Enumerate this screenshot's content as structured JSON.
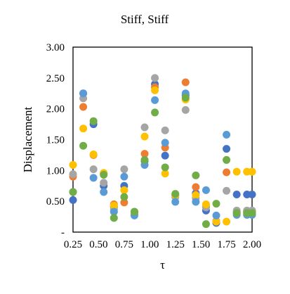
{
  "chart_data": {
    "type": "scatter",
    "title": "Stiff, Stiff",
    "xlabel": "τ",
    "ylabel": "Displacement",
    "xlim": [
      0.25,
      2.0
    ],
    "ylim": [
      0,
      3.0
    ],
    "x_ticks": [
      "0.25",
      "0.50",
      "0.75",
      "1.00",
      "1.25",
      "1.50",
      "1.75",
      "2.00"
    ],
    "y_ticks": [
      "-",
      "0.50",
      "1.00",
      "1.50",
      "2.00",
      "2.50",
      "3.00"
    ],
    "grid": false,
    "legend": "none",
    "series": [
      {
        "color": "#4472C4",
        "points": [
          [
            0.25,
            0.52
          ],
          [
            0.35,
            2.25
          ],
          [
            0.45,
            1.75
          ],
          [
            0.55,
            0.75
          ],
          [
            0.65,
            0.41
          ],
          [
            0.75,
            0.75
          ],
          [
            0.85,
            0.3
          ],
          [
            0.95,
            1.15
          ],
          [
            1.05,
            2.4
          ],
          [
            1.15,
            1.24
          ],
          [
            1.25,
            0.6
          ],
          [
            1.35,
            2.22
          ],
          [
            1.45,
            0.63
          ],
          [
            1.55,
            0.35
          ],
          [
            1.65,
            0.15
          ],
          [
            1.75,
            1.35
          ],
          [
            1.85,
            0.61
          ],
          [
            1.95,
            0.61
          ],
          [
            2.0,
            0.61
          ]
        ]
      },
      {
        "color": "#ED7D31",
        "points": [
          [
            0.25,
            0.9
          ],
          [
            0.35,
            2.03
          ],
          [
            0.45,
            1.25
          ],
          [
            0.55,
            0.95
          ],
          [
            0.65,
            0.45
          ],
          [
            0.75,
            0.48
          ],
          [
            0.85,
            0.33
          ],
          [
            0.95,
            1.27
          ],
          [
            1.05,
            2.35
          ],
          [
            1.15,
            1.37
          ],
          [
            1.25,
            0.6
          ],
          [
            1.35,
            2.43
          ],
          [
            1.45,
            0.73
          ],
          [
            1.55,
            0.41
          ],
          [
            1.65,
            0.18
          ],
          [
            1.75,
            0.97
          ],
          [
            1.85,
            0.32
          ],
          [
            1.95,
            0.33
          ],
          [
            2.0,
            0.33
          ]
        ]
      },
      {
        "color": "#A5A5A5",
        "points": [
          [
            0.25,
            0.94
          ],
          [
            0.35,
            2.17
          ],
          [
            0.45,
            1.02
          ],
          [
            0.55,
            0.8
          ],
          [
            0.65,
            0.37
          ],
          [
            0.75,
            1.02
          ],
          [
            0.85,
            0.33
          ],
          [
            0.95,
            1.7
          ],
          [
            1.05,
            2.5
          ],
          [
            1.15,
            1.65
          ],
          [
            1.25,
            0.57
          ],
          [
            1.35,
            1.98
          ],
          [
            1.45,
            0.55
          ],
          [
            1.55,
            0.4
          ],
          [
            1.65,
            0.17
          ],
          [
            1.75,
            0.67
          ],
          [
            1.85,
            0.35
          ],
          [
            1.95,
            0.35
          ],
          [
            2.0,
            0.35
          ]
        ]
      },
      {
        "color": "#FFC000",
        "points": [
          [
            0.25,
            1.09
          ],
          [
            0.35,
            1.68
          ],
          [
            0.45,
            1.26
          ],
          [
            0.55,
            0.96
          ],
          [
            0.65,
            0.43
          ],
          [
            0.75,
            0.68
          ],
          [
            0.85,
            0.31
          ],
          [
            0.95,
            1.55
          ],
          [
            1.05,
            2.3
          ],
          [
            1.15,
            0.95
          ],
          [
            1.25,
            0.6
          ],
          [
            1.35,
            2.15
          ],
          [
            1.45,
            0.6
          ],
          [
            1.55,
            0.45
          ],
          [
            1.65,
            0.17
          ],
          [
            1.75,
            0.17
          ],
          [
            1.85,
            0.98
          ],
          [
            1.95,
            0.98
          ],
          [
            2.0,
            0.98
          ]
        ]
      },
      {
        "color": "#5B9BD5",
        "points": [
          [
            0.25,
            0.65
          ],
          [
            0.35,
            2.25
          ],
          [
            0.45,
            0.88
          ],
          [
            0.55,
            0.65
          ],
          [
            0.65,
            0.33
          ],
          [
            0.75,
            0.9
          ],
          [
            0.85,
            0.27
          ],
          [
            0.95,
            1.09
          ],
          [
            1.05,
            2.14
          ],
          [
            1.15,
            1.45
          ],
          [
            1.25,
            0.49
          ],
          [
            1.35,
            2.25
          ],
          [
            1.45,
            0.49
          ],
          [
            1.55,
            0.68
          ],
          [
            1.65,
            0.27
          ],
          [
            1.75,
            1.58
          ],
          [
            1.85,
            0.28
          ],
          [
            1.95,
            0.28
          ],
          [
            2.0,
            0.28
          ]
        ]
      },
      {
        "color": "#70AD47",
        "points": [
          [
            0.25,
            0.65
          ],
          [
            0.35,
            1.4
          ],
          [
            0.45,
            1.8
          ],
          [
            0.55,
            0.93
          ],
          [
            0.65,
            0.23
          ],
          [
            0.75,
            0.57
          ],
          [
            0.85,
            0.33
          ],
          [
            0.95,
            1.17
          ],
          [
            1.05,
            1.94
          ],
          [
            1.15,
            1.05
          ],
          [
            1.25,
            0.62
          ],
          [
            1.35,
            2.18
          ],
          [
            1.45,
            0.92
          ],
          [
            1.55,
            0.13
          ],
          [
            1.65,
            0.46
          ],
          [
            1.75,
            1.17
          ],
          [
            1.85,
            0.31
          ],
          [
            1.95,
            0.31
          ],
          [
            2.0,
            0.31
          ]
        ]
      }
    ]
  }
}
